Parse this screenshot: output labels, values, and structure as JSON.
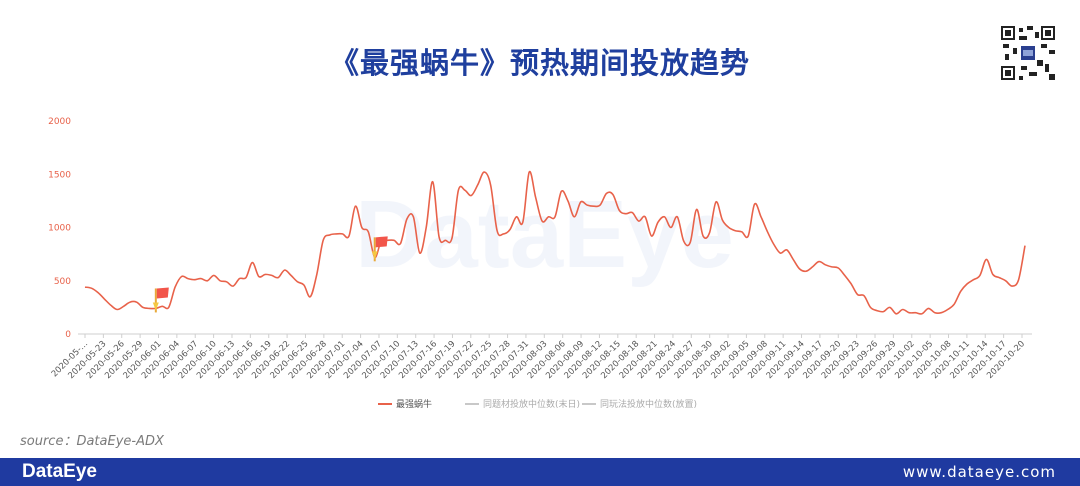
{
  "header": {
    "title": "《最强蜗牛》预热期间投放趋势"
  },
  "watermark": "DataEye",
  "source": "source：DataEye-ADX",
  "footer": {
    "logo": "DataEye",
    "url": "www.dataeye.com"
  },
  "colors": {
    "title": "#1f3f9e",
    "series_line": "#e8624a",
    "footer_bg": "#1f3aa0",
    "axis_label": "#e8624a"
  },
  "chart_data": {
    "type": "line",
    "ylim": [
      0,
      2000
    ],
    "yticks": [
      0,
      500,
      1000,
      1500,
      2000
    ],
    "grid": false,
    "legend_position": "bottom",
    "legend": [
      "最强蜗牛",
      "同题材投放中位数(末日)",
      "同玩法投放中位数(放置)"
    ],
    "xticklabels": [
      "2020-05-…",
      "2020-05-23",
      "2020-05-26",
      "2020-05-29",
      "2020-06-01",
      "2020-06-04",
      "2020-06-07",
      "2020-06-10",
      "2020-06-13",
      "2020-06-16",
      "2020-06-19",
      "2020-06-22",
      "2020-06-25",
      "2020-06-28",
      "2020-07-01",
      "2020-07-04",
      "2020-07-07",
      "2020-07-10",
      "2020-07-13",
      "2020-07-16",
      "2020-07-19",
      "2020-07-22",
      "2020-07-25",
      "2020-07-28",
      "2020-07-31",
      "2020-08-03",
      "2020-08-06",
      "2020-08-09",
      "2020-08-12",
      "2020-08-15",
      "2020-08-18",
      "2020-08-21",
      "2020-08-24",
      "2020-08-27",
      "2020-08-30",
      "2020-09-02",
      "2020-09-05",
      "2020-09-08",
      "2020-09-11",
      "2020-09-14",
      "2020-09-17",
      "2020-09-20",
      "2020-09-23",
      "2020-09-26",
      "2020-09-29",
      "2020-10-02",
      "2020-10-05",
      "2020-10-08",
      "2020-10-11",
      "2020-10-14",
      "2020-10-17",
      "2020-10-20"
    ],
    "flag_indices": [
      11,
      45
    ],
    "series": [
      {
        "name": "最强蜗牛",
        "values": [
          440,
          430,
          390,
          330,
          270,
          230,
          260,
          300,
          300,
          250,
          240,
          240,
          260,
          250,
          440,
          540,
          520,
          510,
          520,
          500,
          550,
          500,
          490,
          450,
          520,
          530,
          670,
          540,
          560,
          550,
          530,
          600,
          550,
          490,
          460,
          350,
          560,
          880,
          930,
          940,
          940,
          920,
          1200,
          1000,
          960,
          720,
          870,
          880,
          880,
          850,
          1080,
          1100,
          760,
          1000,
          1430,
          910,
          880,
          900,
          1350,
          1350,
          1300,
          1400,
          1520,
          1400,
          970,
          940,
          980,
          1100,
          1050,
          1520,
          1280,
          1060,
          1100,
          1100,
          1340,
          1250,
          1100,
          1240,
          1210,
          1200,
          1210,
          1320,
          1310,
          1160,
          1130,
          1140,
          1060,
          1100,
          920,
          1050,
          1100,
          1000,
          1100,
          870,
          860,
          1170,
          920,
          950,
          1240,
          1070,
          1000,
          970,
          960,
          920,
          1220,
          1100,
          960,
          840,
          760,
          790,
          700,
          610,
          590,
          630,
          680,
          650,
          630,
          620,
          550,
          470,
          370,
          360,
          250,
          220,
          210,
          250,
          190,
          230,
          200,
          200,
          190,
          240,
          200,
          200,
          230,
          280,
          400,
          470,
          510,
          550,
          700,
          560,
          530,
          500,
          450,
          510,
          830
        ]
      }
    ]
  }
}
